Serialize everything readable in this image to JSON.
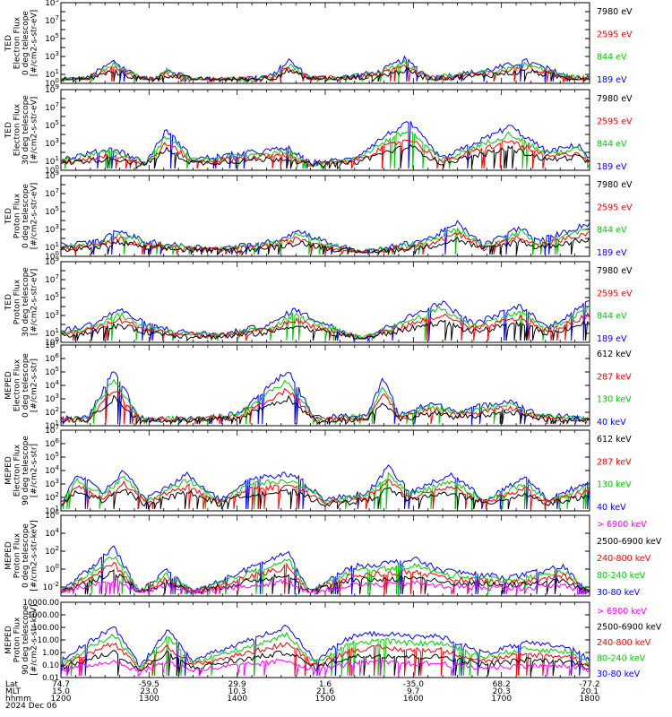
{
  "chart_data": [
    {
      "type": "line",
      "ylabel": [
        "TED",
        "Electron Flux",
        "0 deg telescope",
        "[#/cm2-s-str-eV]"
      ],
      "ylog": true,
      "ylim": [
        1,
        1000000000
      ],
      "ytick_values": [
        1,
        10,
        100,
        1000,
        10000,
        100000,
        1000000,
        10000000,
        100000000,
        1000000000
      ],
      "ytick_labels": [
        "10^0",
        "10^1",
        "10^2",
        "10^3",
        "10^4",
        "10^5",
        "10^6",
        "10^7",
        "10^8",
        "10^9"
      ],
      "ytick_labeled": [
        true,
        true,
        false,
        true,
        false,
        true,
        false,
        true,
        false,
        true
      ],
      "legend": [
        "7980 eV",
        "2595 eV",
        "844 eV",
        "189 eV"
      ],
      "legend_colors": [
        "#000000",
        "#ff0000",
        "#00cc00",
        "#0000ff"
      ],
      "shape": [
        {
          "t": 0.0,
          "v": 0
        },
        {
          "t": 0.05,
          "v": 0.02
        },
        {
          "t": 0.1,
          "v": 0.25
        },
        {
          "t": 0.15,
          "v": 0.02
        },
        {
          "t": 0.18,
          "v": 0
        },
        {
          "t": 0.2,
          "v": 0.15
        },
        {
          "t": 0.25,
          "v": 0.0
        },
        {
          "t": 0.32,
          "v": 0.0
        },
        {
          "t": 0.4,
          "v": 0.05
        },
        {
          "t": 0.43,
          "v": 0.27
        },
        {
          "t": 0.47,
          "v": 0.03
        },
        {
          "t": 0.52,
          "v": 0.02
        },
        {
          "t": 0.6,
          "v": 0.1
        },
        {
          "t": 0.65,
          "v": 0.28
        },
        {
          "t": 0.7,
          "v": 0.02
        },
        {
          "t": 0.8,
          "v": 0.12
        },
        {
          "t": 0.88,
          "v": 0.25
        },
        {
          "t": 0.96,
          "v": 0.05
        },
        {
          "t": 1.0,
          "v": 0.02
        }
      ]
    },
    {
      "type": "line",
      "ylabel": [
        "TED",
        "Electron Flux",
        "30 deg telescope",
        "[#/cm2-s-str-eV]"
      ],
      "ylog": true,
      "ylim": [
        1,
        1000000000
      ],
      "ytick_values": [
        1,
        10,
        100,
        1000,
        10000,
        100000,
        1000000,
        10000000,
        100000000,
        1000000000
      ],
      "ytick_labels": [
        "10^0",
        "10^1",
        "10^2",
        "10^3",
        "10^4",
        "10^5",
        "10^6",
        "10^7",
        "10^8",
        "10^9"
      ],
      "ytick_labeled": [
        true,
        true,
        false,
        true,
        false,
        true,
        false,
        true,
        false,
        true
      ],
      "legend": [
        "7980 eV",
        "2595 eV",
        "844 eV",
        "189 eV"
      ],
      "legend_colors": [
        "#000000",
        "#ff0000",
        "#00cc00",
        "#0000ff"
      ],
      "shape": [
        {
          "t": 0.0,
          "v": 0.1
        },
        {
          "t": 0.1,
          "v": 0.25
        },
        {
          "t": 0.16,
          "v": 0.05
        },
        {
          "t": 0.2,
          "v": 0.5
        },
        {
          "t": 0.25,
          "v": 0.1
        },
        {
          "t": 0.43,
          "v": 0.25
        },
        {
          "t": 0.47,
          "v": 0.05
        },
        {
          "t": 0.55,
          "v": 0.1
        },
        {
          "t": 0.62,
          "v": 0.45
        },
        {
          "t": 0.66,
          "v": 0.6
        },
        {
          "t": 0.72,
          "v": 0.1
        },
        {
          "t": 0.85,
          "v": 0.55
        },
        {
          "t": 0.92,
          "v": 0.2
        },
        {
          "t": 0.98,
          "v": 0.3
        },
        {
          "t": 1.0,
          "v": 0.1
        }
      ]
    },
    {
      "type": "line",
      "ylabel": [
        "TED",
        "Proton Flux",
        "0 deg telescope",
        "[#/cm2-s-str-eV]"
      ],
      "ylog": true,
      "ylim": [
        1,
        1000000000
      ],
      "ytick_values": [
        1,
        10,
        100,
        1000,
        10000,
        100000,
        1000000,
        10000000,
        100000000,
        1000000000
      ],
      "ytick_labels": [
        "10^0",
        "10^1",
        "10^2",
        "10^3",
        "10^4",
        "10^5",
        "10^6",
        "10^7",
        "10^8",
        "10^9"
      ],
      "ytick_labeled": [
        true,
        true,
        false,
        true,
        false,
        true,
        false,
        true,
        false,
        true
      ],
      "legend": [
        "7980 eV",
        "2595 eV",
        "844 eV",
        "189 eV"
      ],
      "legend_colors": [
        "#000000",
        "#ff0000",
        "#00cc00",
        "#0000ff"
      ],
      "shape": [
        {
          "t": 0.0,
          "v": 0.1
        },
        {
          "t": 0.07,
          "v": 0.15
        },
        {
          "t": 0.11,
          "v": 0.3
        },
        {
          "t": 0.16,
          "v": 0.15
        },
        {
          "t": 0.22,
          "v": 0.1
        },
        {
          "t": 0.3,
          "v": 0.05
        },
        {
          "t": 0.4,
          "v": 0.15
        },
        {
          "t": 0.45,
          "v": 0.3
        },
        {
          "t": 0.5,
          "v": 0.15
        },
        {
          "t": 0.57,
          "v": 0.0
        },
        {
          "t": 0.64,
          "v": 0.1
        },
        {
          "t": 0.7,
          "v": 0.2
        },
        {
          "t": 0.75,
          "v": 0.4
        },
        {
          "t": 0.8,
          "v": 0.1
        },
        {
          "t": 0.87,
          "v": 0.35
        },
        {
          "t": 0.9,
          "v": 0.15
        },
        {
          "t": 1.0,
          "v": 0.4
        }
      ]
    },
    {
      "type": "line",
      "ylabel": [
        "TED",
        "Proton Flux",
        "30 deg telescope",
        "[#/cm2-s-str-eV]"
      ],
      "ylog": true,
      "ylim": [
        1,
        1000000000
      ],
      "ytick_values": [
        1,
        10,
        100,
        1000,
        10000,
        100000,
        1000000,
        10000000,
        100000000,
        1000000000
      ],
      "ytick_labels": [
        "10^0",
        "10^1",
        "10^2",
        "10^3",
        "10^4",
        "10^5",
        "10^6",
        "10^7",
        "10^8",
        "10^9"
      ],
      "ytick_labeled": [
        true,
        true,
        false,
        true,
        false,
        true,
        false,
        true,
        false,
        true
      ],
      "legend": [
        "7980 eV",
        "2595 eV",
        "844 eV",
        "189 eV"
      ],
      "legend_colors": [
        "#000000",
        "#ff0000",
        "#00cc00",
        "#0000ff"
      ],
      "shape": [
        {
          "t": 0.0,
          "v": 0.1
        },
        {
          "t": 0.06,
          "v": 0.2
        },
        {
          "t": 0.11,
          "v": 0.4
        },
        {
          "t": 0.16,
          "v": 0.2
        },
        {
          "t": 0.22,
          "v": 0.1
        },
        {
          "t": 0.3,
          "v": 0.05
        },
        {
          "t": 0.4,
          "v": 0.2
        },
        {
          "t": 0.44,
          "v": 0.4
        },
        {
          "t": 0.5,
          "v": 0.2
        },
        {
          "t": 0.57,
          "v": 0.0
        },
        {
          "t": 0.66,
          "v": 0.3
        },
        {
          "t": 0.72,
          "v": 0.5
        },
        {
          "t": 0.78,
          "v": 0.2
        },
        {
          "t": 0.87,
          "v": 0.45
        },
        {
          "t": 0.92,
          "v": 0.15
        },
        {
          "t": 1.0,
          "v": 0.5
        }
      ]
    },
    {
      "type": "line",
      "ylabel": [
        "MEPED",
        "Electron Flux",
        "0 deg telescope",
        "[#/cm2-s-str]"
      ],
      "ylog": true,
      "ylim": [
        10,
        10000000
      ],
      "ytick_values": [
        10,
        100,
        1000,
        10000,
        100000,
        1000000,
        10000000
      ],
      "ytick_labels": [
        "10^1",
        "10^2",
        "10^3",
        "10^4",
        "10^5",
        "10^6",
        "10^7"
      ],
      "ytick_labeled": [
        true,
        true,
        true,
        true,
        true,
        true,
        true
      ],
      "legend": [
        "612 keV",
        "287 keV",
        "130 keV",
        "40 keV"
      ],
      "legend_colors": [
        "#000000",
        "#ff0000",
        "#00cc00",
        "#0000ff"
      ],
      "shape": [
        {
          "t": 0.0,
          "v": 0.05
        },
        {
          "t": 0.05,
          "v": 0.05
        },
        {
          "t": 0.1,
          "v": 0.7
        },
        {
          "t": 0.15,
          "v": 0.05
        },
        {
          "t": 0.25,
          "v": 0.05
        },
        {
          "t": 0.33,
          "v": 0.1
        },
        {
          "t": 0.43,
          "v": 0.7
        },
        {
          "t": 0.48,
          "v": 0.05
        },
        {
          "t": 0.58,
          "v": 0.1
        },
        {
          "t": 0.61,
          "v": 0.6
        },
        {
          "t": 0.64,
          "v": 0.1
        },
        {
          "t": 0.7,
          "v": 0.25
        },
        {
          "t": 0.75,
          "v": 0.15
        },
        {
          "t": 0.85,
          "v": 0.3
        },
        {
          "t": 0.9,
          "v": 0.1
        },
        {
          "t": 1.0,
          "v": 0.05
        }
      ]
    },
    {
      "type": "line",
      "ylabel": [
        "MEPED",
        "Electron Flux",
        "90 deg telescope",
        "[#/cm2-s-str]"
      ],
      "ylog": true,
      "ylim": [
        10,
        10000000
      ],
      "ytick_values": [
        10,
        100,
        1000,
        10000,
        100000,
        1000000,
        10000000
      ],
      "ytick_labels": [
        "10^1",
        "10^2",
        "10^3",
        "10^4",
        "10^5",
        "10^6",
        "10^7"
      ],
      "ytick_labeled": [
        true,
        true,
        true,
        true,
        true,
        true,
        true
      ],
      "legend": [
        "612 keV",
        "287 keV",
        "130 keV",
        "40 keV"
      ],
      "legend_colors": [
        "#000000",
        "#ff0000",
        "#00cc00",
        "#0000ff"
      ],
      "shape": [
        {
          "t": 0.0,
          "v": 0.05
        },
        {
          "t": 0.03,
          "v": 0.45
        },
        {
          "t": 0.08,
          "v": 0.2
        },
        {
          "t": 0.12,
          "v": 0.5
        },
        {
          "t": 0.16,
          "v": 0.1
        },
        {
          "t": 0.24,
          "v": 0.45
        },
        {
          "t": 0.3,
          "v": 0.1
        },
        {
          "t": 0.36,
          "v": 0.4
        },
        {
          "t": 0.44,
          "v": 0.45
        },
        {
          "t": 0.5,
          "v": 0.1
        },
        {
          "t": 0.58,
          "v": 0.2
        },
        {
          "t": 0.62,
          "v": 0.55
        },
        {
          "t": 0.66,
          "v": 0.2
        },
        {
          "t": 0.74,
          "v": 0.45
        },
        {
          "t": 0.8,
          "v": 0.1
        },
        {
          "t": 0.88,
          "v": 0.4
        },
        {
          "t": 0.92,
          "v": 0.1
        },
        {
          "t": 1.0,
          "v": 0.35
        }
      ]
    },
    {
      "type": "line",
      "ylabel": [
        "MEPED",
        "Proton Flux",
        "0 deg telescope",
        "[#/cm2-s-str-keV]"
      ],
      "ylog": true,
      "ylim": [
        0.001,
        1000000
      ],
      "ytick_values": [
        0.01,
        1,
        100,
        10000,
        1000000
      ],
      "ytick_labels": [
        "10^-2",
        "10^0",
        "10^2",
        "10^4",
        "10^6"
      ],
      "ytick_labeled": [
        true,
        true,
        true,
        true,
        true
      ],
      "legend": [
        "> 6900 keV",
        "2500-6900 keV",
        "240-800 keV",
        "80-240 keV",
        "30-80 keV"
      ],
      "legend_colors": [
        "#ff00ff",
        "#000000",
        "#ff0000",
        "#00cc00",
        "#0000ff"
      ],
      "shape": [
        {
          "t": 0.0,
          "v": 0.0
        },
        {
          "t": 0.1,
          "v": 0.6
        },
        {
          "t": 0.15,
          "v": 0.0
        },
        {
          "t": 0.2,
          "v": 0.3
        },
        {
          "t": 0.25,
          "v": 0.0
        },
        {
          "t": 0.43,
          "v": 0.55
        },
        {
          "t": 0.47,
          "v": 0.0
        },
        {
          "t": 0.55,
          "v": 0.35
        },
        {
          "t": 0.62,
          "v": 0.4
        },
        {
          "t": 0.67,
          "v": 0.45
        },
        {
          "t": 0.72,
          "v": 0.3
        },
        {
          "t": 0.85,
          "v": 0.2
        },
        {
          "t": 0.95,
          "v": 0.35
        },
        {
          "t": 1.0,
          "v": 0.0
        }
      ]
    },
    {
      "type": "line",
      "ylabel": [
        "MEPED",
        "Proton Flux",
        "90 deg telescope",
        "[#/cm2-s-str-keV]"
      ],
      "ylog": true,
      "ylim": [
        0.01,
        10000
      ],
      "ytick_values": [
        0.01,
        0.1,
        1,
        10,
        100,
        1000,
        10000
      ],
      "ytick_labels": [
        "0.01",
        "0.10",
        "1.00",
        "10.00",
        "100.00",
        "1000.00",
        "10000.00"
      ],
      "ytick_labeled": [
        true,
        true,
        true,
        true,
        true,
        true,
        true
      ],
      "legend": [
        "> 6900 keV",
        "2500-6900 keV",
        "240-800 keV",
        "80-240 keV",
        "30-80 keV"
      ],
      "legend_colors": [
        "#ff00ff",
        "#000000",
        "#ff0000",
        "#00cc00",
        "#0000ff"
      ],
      "shape": [
        {
          "t": 0.0,
          "v": 0.2
        },
        {
          "t": 0.1,
          "v": 0.7
        },
        {
          "t": 0.15,
          "v": 0.1
        },
        {
          "t": 0.2,
          "v": 0.65
        },
        {
          "t": 0.25,
          "v": 0.2
        },
        {
          "t": 0.43,
          "v": 0.7
        },
        {
          "t": 0.48,
          "v": 0.2
        },
        {
          "t": 0.55,
          "v": 0.55
        },
        {
          "t": 0.6,
          "v": 0.6
        },
        {
          "t": 0.66,
          "v": 0.55
        },
        {
          "t": 0.72,
          "v": 0.55
        },
        {
          "t": 0.8,
          "v": 0.3
        },
        {
          "t": 0.88,
          "v": 0.45
        },
        {
          "t": 0.96,
          "v": 0.4
        },
        {
          "t": 1.0,
          "v": 0.2
        }
      ]
    }
  ],
  "x_axis": {
    "row_labels": [
      "Lat",
      "MLT",
      "hhmm",
      "2024 Dec 06"
    ],
    "ticks": [
      {
        "time": "1200",
        "lat": "74.7",
        "mlt": "15.0"
      },
      {
        "time": "1300",
        "lat": "-59.5",
        "mlt": "23.0"
      },
      {
        "time": "1400",
        "lat": "29.9",
        "mlt": "10.3"
      },
      {
        "time": "1500",
        "lat": "1.6",
        "mlt": "21.6"
      },
      {
        "time": "1600",
        "lat": "-35.0",
        "mlt": "9.7"
      },
      {
        "time": "1700",
        "lat": "68.2",
        "mlt": "20.3"
      },
      {
        "time": "1800",
        "lat": "-77.2",
        "mlt": "20.1"
      }
    ]
  }
}
